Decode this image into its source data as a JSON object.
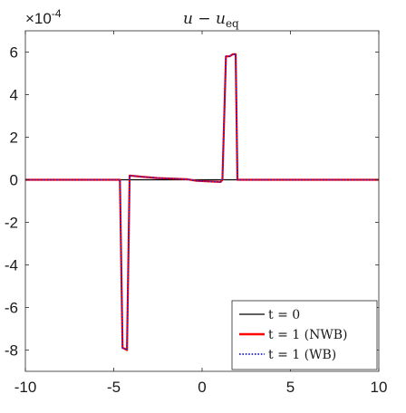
{
  "chart_data": {
    "type": "line",
    "title": {
      "main": "u − u",
      "subscript": "eq"
    },
    "exponent_label": {
      "base": "×10",
      "power": "-4"
    },
    "xlabel": "",
    "ylabel": "",
    "xlim": [
      -10,
      10
    ],
    "ylim": [
      -9,
      7
    ],
    "y_scale_factor": 0.0001,
    "x_ticks": [
      "-10",
      "-5",
      "0",
      "5",
      "10"
    ],
    "x_tick_values": [
      -10,
      -5,
      0,
      5,
      10
    ],
    "y_ticks": [
      "-8",
      "-6",
      "-4",
      "-2",
      "0",
      "2",
      "4",
      "6"
    ],
    "y_tick_values": [
      -8,
      -6,
      -4,
      -2,
      0,
      2,
      4,
      6
    ],
    "grid": false,
    "legend_position": "bottom-right",
    "series": [
      {
        "name": "t = 0",
        "color": "#000000",
        "style": "solid",
        "x": [
          -10,
          10
        ],
        "y": [
          0,
          0
        ]
      },
      {
        "name": "t = 1 (NWB)",
        "color": "#ff0000",
        "style": "solid",
        "x": [
          -10,
          -4.65,
          -4.5,
          -4.35,
          -4.25,
          -4.1,
          -3.5,
          -2.5,
          -1.5,
          -0.8,
          -0.3,
          1.05,
          1.15,
          1.35,
          1.55,
          1.75,
          1.9,
          2.0,
          10
        ],
        "y": [
          0,
          0,
          -7.9,
          -7.95,
          -8.0,
          0.2,
          0.15,
          0.08,
          0.05,
          0.02,
          -0.05,
          -0.1,
          0.0,
          5.8,
          5.8,
          5.9,
          5.9,
          0,
          0
        ]
      },
      {
        "name": "t = 1 (WB)",
        "color": "#1f1fd6",
        "style": "dotted",
        "x": [
          -10,
          -4.65,
          -4.5,
          -4.35,
          -4.25,
          -4.1,
          -3.5,
          -2.5,
          -1.5,
          -0.8,
          -0.3,
          1.05,
          1.15,
          1.35,
          1.55,
          1.75,
          1.9,
          2.0,
          10
        ],
        "y": [
          0,
          0,
          -7.9,
          -7.95,
          -8.0,
          0.2,
          0.15,
          0.08,
          0.05,
          0.02,
          -0.05,
          -0.1,
          0.0,
          5.8,
          5.8,
          5.9,
          5.9,
          0,
          0
        ]
      }
    ],
    "legend": {
      "entries": [
        {
          "label": "t = 0",
          "color": "#000000",
          "style": "solid"
        },
        {
          "label": "t = 1 (NWB)",
          "color": "#ff0000",
          "style": "solid"
        },
        {
          "label": "t = 1 (WB)",
          "color": "#1f1fd6",
          "style": "dotted"
        }
      ]
    }
  }
}
